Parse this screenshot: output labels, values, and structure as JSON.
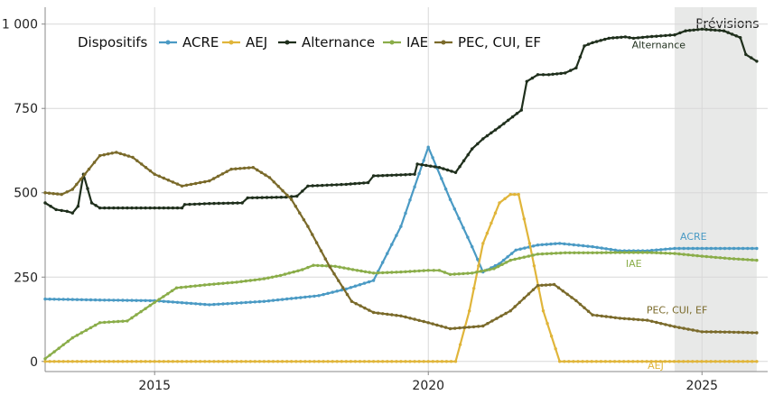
{
  "chart_data": {
    "type": "line",
    "xlim": [
      2013,
      2026.2
    ],
    "ylim": [
      -30,
      1050
    ],
    "x_ticks": [
      2015,
      2020,
      2025
    ],
    "x_tick_labels": [
      "2015",
      "2020",
      "2025"
    ],
    "y_ticks": [
      0,
      250,
      500,
      750,
      1000
    ],
    "y_tick_labels": [
      "0",
      "250",
      "500",
      "750",
      "1 000"
    ],
    "grid": true,
    "legend": {
      "title": "Dispositifs",
      "placement": "top-left"
    },
    "forecast_band": {
      "x_start": 2024.5,
      "x_end": 2026,
      "label": "Prévisions",
      "color": "#e8e9e8"
    },
    "series": [
      {
        "name": "ACRE",
        "label": "ACRE",
        "color": "#4a9ac4",
        "points": [
          [
            2013,
            185
          ],
          [
            2014,
            182
          ],
          [
            2015,
            180
          ],
          [
            2016,
            168
          ],
          [
            2017,
            178
          ],
          [
            2018,
            195
          ],
          [
            2018.5,
            215
          ],
          [
            2019,
            240
          ],
          [
            2019.5,
            400
          ],
          [
            2020,
            635
          ],
          [
            2020.4,
            480
          ],
          [
            2020.8,
            340
          ],
          [
            2021,
            265
          ],
          [
            2021.3,
            290
          ],
          [
            2021.6,
            330
          ],
          [
            2022,
            345
          ],
          [
            2022.4,
            350
          ],
          [
            2023,
            340
          ],
          [
            2023.5,
            328
          ],
          [
            2024,
            328
          ],
          [
            2024.5,
            335
          ],
          [
            2025,
            335
          ],
          [
            2026,
            335
          ]
        ]
      },
      {
        "name": "AEJ",
        "label": "AEJ",
        "color": "#e0b53a",
        "points": [
          [
            2013,
            0
          ],
          [
            2020.5,
            0
          ],
          [
            2020.75,
            150
          ],
          [
            2021,
            350
          ],
          [
            2021.3,
            470
          ],
          [
            2021.5,
            495
          ],
          [
            2021.65,
            495
          ],
          [
            2021.85,
            350
          ],
          [
            2022.1,
            150
          ],
          [
            2022.4,
            0
          ],
          [
            2026,
            0
          ]
        ]
      },
      {
        "name": "Alternance",
        "label": "Alternance",
        "color": "#1f2f1c",
        "points": [
          [
            2013,
            470
          ],
          [
            2013.2,
            450
          ],
          [
            2013.4,
            445
          ],
          [
            2013.5,
            440
          ],
          [
            2013.6,
            460
          ],
          [
            2013.7,
            555
          ],
          [
            2013.85,
            470
          ],
          [
            2014,
            455
          ],
          [
            2015,
            455
          ],
          [
            2015.5,
            455
          ],
          [
            2015.55,
            465
          ],
          [
            2016,
            468
          ],
          [
            2016.6,
            470
          ],
          [
            2016.7,
            485
          ],
          [
            2017.4,
            487
          ],
          [
            2017.6,
            490
          ],
          [
            2017.8,
            520
          ],
          [
            2018.5,
            525
          ],
          [
            2018.9,
            530
          ],
          [
            2019,
            550
          ],
          [
            2019.5,
            553
          ],
          [
            2019.75,
            555
          ],
          [
            2019.8,
            585
          ],
          [
            2020.2,
            575
          ],
          [
            2020.5,
            560
          ],
          [
            2020.8,
            630
          ],
          [
            2021,
            660
          ],
          [
            2021.3,
            695
          ],
          [
            2021.7,
            745
          ],
          [
            2021.8,
            830
          ],
          [
            2022,
            850
          ],
          [
            2022.2,
            850
          ],
          [
            2022.5,
            855
          ],
          [
            2022.7,
            870
          ],
          [
            2022.85,
            935
          ],
          [
            2023,
            945
          ],
          [
            2023.3,
            958
          ],
          [
            2023.6,
            962
          ],
          [
            2023.75,
            958
          ],
          [
            2024,
            962
          ],
          [
            2024.5,
            968
          ],
          [
            2024.7,
            980
          ],
          [
            2025,
            985
          ],
          [
            2025.4,
            980
          ],
          [
            2025.7,
            960
          ],
          [
            2025.8,
            910
          ],
          [
            2026,
            890
          ]
        ]
      },
      {
        "name": "IAE",
        "label": "IAE",
        "color": "#8aad49",
        "points": [
          [
            2013,
            8
          ],
          [
            2013.5,
            70
          ],
          [
            2014,
            115
          ],
          [
            2014.5,
            120
          ],
          [
            2015,
            175
          ],
          [
            2015.4,
            218
          ],
          [
            2016,
            228
          ],
          [
            2016.5,
            235
          ],
          [
            2017,
            245
          ],
          [
            2017.3,
            255
          ],
          [
            2017.7,
            272
          ],
          [
            2017.9,
            285
          ],
          [
            2018.3,
            282
          ],
          [
            2018.7,
            270
          ],
          [
            2019,
            262
          ],
          [
            2019.5,
            265
          ],
          [
            2020,
            270
          ],
          [
            2020.2,
            270
          ],
          [
            2020.4,
            258
          ],
          [
            2020.8,
            262
          ],
          [
            2021.2,
            275
          ],
          [
            2021.5,
            300
          ],
          [
            2022,
            318
          ],
          [
            2022.5,
            322
          ],
          [
            2023,
            322
          ],
          [
            2023.5,
            323
          ],
          [
            2024,
            323
          ],
          [
            2024.5,
            320
          ],
          [
            2025,
            312
          ],
          [
            2025.5,
            305
          ],
          [
            2026,
            300
          ]
        ]
      },
      {
        "name": "PEC, CUI, EF",
        "label": "PEC, CUI, EF",
        "color": "#7a6a2a",
        "points": [
          [
            2013,
            500
          ],
          [
            2013.3,
            495
          ],
          [
            2013.5,
            510
          ],
          [
            2013.8,
            570
          ],
          [
            2014,
            610
          ],
          [
            2014.3,
            620
          ],
          [
            2014.6,
            605
          ],
          [
            2015,
            555
          ],
          [
            2015.5,
            520
          ],
          [
            2016,
            535
          ],
          [
            2016.4,
            570
          ],
          [
            2016.8,
            575
          ],
          [
            2017.1,
            545
          ],
          [
            2017.5,
            480
          ],
          [
            2017.8,
            400
          ],
          [
            2018.2,
            280
          ],
          [
            2018.6,
            178
          ],
          [
            2019,
            145
          ],
          [
            2019.5,
            135
          ],
          [
            2020,
            115
          ],
          [
            2020.4,
            97
          ],
          [
            2021,
            105
          ],
          [
            2021.5,
            150
          ],
          [
            2022,
            225
          ],
          [
            2022.3,
            228
          ],
          [
            2022.7,
            180
          ],
          [
            2023,
            138
          ],
          [
            2023.5,
            128
          ],
          [
            2024,
            122
          ],
          [
            2024.5,
            103
          ],
          [
            2025,
            88
          ],
          [
            2025.5,
            87
          ],
          [
            2026,
            85
          ]
        ]
      }
    ]
  }
}
